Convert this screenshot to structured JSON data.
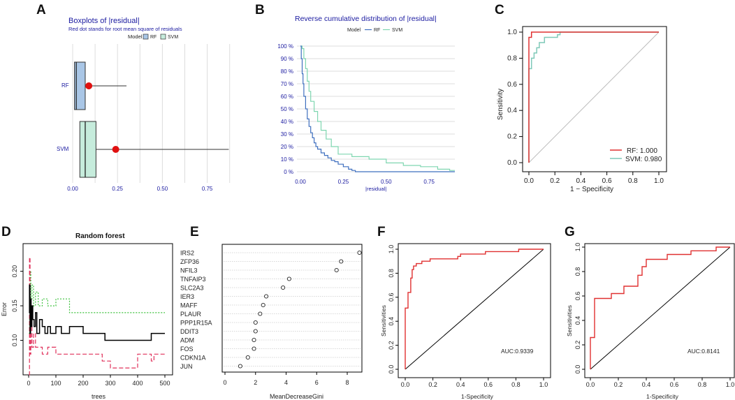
{
  "panels": {
    "A": {
      "label": "A",
      "chart_data": {
        "type": "boxplot",
        "title": "Boxplots of |residual|",
        "subtitle": "Red dot stands for root mean square of residuals",
        "legend_title": "Model",
        "legend": [
          "RF",
          "SVM"
        ],
        "xlim": [
          0,
          0.88
        ],
        "xticks": [
          "0.00",
          "0.25",
          "0.50",
          "0.75"
        ],
        "series": [
          {
            "name": "RF",
            "min": 0.0,
            "q1": 0.01,
            "median": 0.02,
            "q3": 0.07,
            "max": 0.3,
            "rmse": 0.09,
            "color": "#a9c6e6"
          },
          {
            "name": "SVM",
            "min": 0.03,
            "q1": 0.04,
            "median": 0.07,
            "q3": 0.13,
            "max": 0.87,
            "rmse": 0.24,
            "color": "#c6ecdc"
          }
        ]
      }
    },
    "B": {
      "label": "B",
      "chart_data": {
        "type": "line",
        "title": "Reverse cumulative distribution of |residual|",
        "legend_title": "Model",
        "xlabel": "|residual|",
        "xticks": [
          "0.00",
          "0.25",
          "0.50",
          "0.75"
        ],
        "yticks": [
          "0 %",
          "10 %",
          "20 %",
          "30 %",
          "40 %",
          "50 %",
          "60 %",
          "70 %",
          "80 %",
          "90 %",
          "100 %"
        ],
        "xlim": [
          0,
          0.9
        ],
        "ylim": [
          0,
          100
        ],
        "series": [
          {
            "name": "RF",
            "color": "#3f6fbf",
            "x": [
              0.0,
              0.005,
              0.01,
              0.015,
              0.02,
              0.03,
              0.04,
              0.05,
              0.06,
              0.07,
              0.08,
              0.09,
              0.1,
              0.12,
              0.14,
              0.16,
              0.18,
              0.2,
              0.22,
              0.25,
              0.28,
              0.3,
              0.32,
              0.9
            ],
            "y": [
              100,
              90,
              78,
              70,
              60,
              50,
              42,
              36,
              31,
              27,
              23,
              20,
              18,
              15,
              13,
              11,
              9,
              8,
              6,
              4,
              2,
              1,
              0,
              0
            ]
          },
          {
            "name": "SVM",
            "color": "#7fd6b0",
            "x": [
              0.0,
              0.01,
              0.02,
              0.03,
              0.04,
              0.05,
              0.06,
              0.08,
              0.1,
              0.12,
              0.15,
              0.18,
              0.22,
              0.3,
              0.4,
              0.5,
              0.6,
              0.7,
              0.8,
              0.87,
              0.9
            ],
            "y": [
              100,
              98,
              90,
              82,
              72,
              64,
              56,
              48,
              40,
              33,
              26,
              20,
              14,
              12,
              10,
              7,
              5,
              4,
              2,
              1,
              1
            ]
          }
        ]
      }
    },
    "C": {
      "label": "C",
      "chart_data": {
        "type": "line",
        "xlabel": "1 − Specificity",
        "ylabel": "Sensitivity",
        "xticks": [
          "0.0",
          "0.2",
          "0.4",
          "0.6",
          "0.8",
          "1.0"
        ],
        "yticks": [
          "0.0",
          "0.2",
          "0.4",
          "0.6",
          "0.8",
          "1.0"
        ],
        "xlim": [
          0,
          1
        ],
        "ylim": [
          0,
          1
        ],
        "series": [
          {
            "name": "RF",
            "legend": "RF: 1.000",
            "color": "#e03030",
            "x": [
              0,
              0,
              0.02,
              0.02,
              0.24,
              0.24,
              1
            ],
            "y": [
              0,
              0.96,
              0.96,
              1.0,
              1.0,
              1.0,
              1.0
            ]
          },
          {
            "name": "SVM",
            "legend": "SVM: 0.980",
            "color": "#7fc9b8",
            "x": [
              0,
              0,
              0.02,
              0.02,
              0.04,
              0.04,
              0.06,
              0.06,
              0.08,
              0.08,
              0.12,
              0.12,
              0.22,
              0.22,
              0.24,
              0.24,
              1
            ],
            "y": [
              0,
              0.72,
              0.72,
              0.8,
              0.8,
              0.84,
              0.84,
              0.88,
              0.88,
              0.92,
              0.92,
              0.96,
              0.96,
              0.98,
              0.98,
              1.0,
              1.0
            ]
          },
          {
            "name": "Reference",
            "color": "#bbbbbb",
            "x": [
              0,
              1
            ],
            "y": [
              0,
              1
            ]
          }
        ]
      }
    },
    "D": {
      "label": "D",
      "chart_data": {
        "type": "line",
        "title": "Random forest",
        "xlabel": "trees",
        "ylabel": "Error",
        "xticks": [
          "0",
          "100",
          "200",
          "300",
          "400",
          "500"
        ],
        "yticks": [
          "0.10",
          "0.15",
          "0.20"
        ],
        "xlim": [
          0,
          500
        ],
        "ylim": [
          0.05,
          0.24
        ],
        "series": [
          {
            "name": "OOB",
            "color": "#000000",
            "x": [
              1,
              3,
              5,
              7,
              9,
              12,
              15,
              20,
              25,
              30,
              40,
              50,
              60,
              70,
              80,
              100,
              120,
              150,
              200,
              250,
              280,
              300,
              350,
              400,
              450,
              460,
              500
            ],
            "y": [
              0.14,
              0.18,
              0.11,
              0.16,
              0.12,
              0.15,
              0.13,
              0.12,
              0.14,
              0.11,
              0.13,
              0.12,
              0.11,
              0.12,
              0.11,
              0.12,
              0.11,
              0.12,
              0.11,
              0.11,
              0.1,
              0.1,
              0.1,
              0.1,
              0.11,
              0.11,
              0.11
            ]
          },
          {
            "name": "Class 1",
            "color": "#e0305a",
            "x": [
              1,
              3,
              5,
              8,
              12,
              18,
              25,
              35,
              50,
              70,
              100,
              150,
              200,
              250,
              270,
              300,
              350,
              400,
              450,
              460,
              500
            ],
            "y": [
              0.05,
              0.22,
              0.08,
              0.12,
              0.09,
              0.11,
              0.09,
              0.09,
              0.08,
              0.09,
              0.08,
              0.08,
              0.08,
              0.08,
              0.07,
              0.06,
              0.06,
              0.08,
              0.07,
              0.08,
              0.08
            ]
          },
          {
            "name": "Class 2",
            "color": "#3cc13c",
            "x": [
              1,
              3,
              5,
              8,
              12,
              18,
              25,
              35,
              50,
              70,
              100,
              150,
              200,
              250,
              300,
              350,
              400,
              450,
              500
            ],
            "y": [
              0.11,
              0.13,
              0.2,
              0.16,
              0.18,
              0.15,
              0.17,
              0.15,
              0.16,
              0.15,
              0.16,
              0.14,
              0.14,
              0.14,
              0.14,
              0.14,
              0.14,
              0.14,
              0.14
            ]
          }
        ]
      }
    },
    "E": {
      "label": "E",
      "chart_data": {
        "type": "scatter",
        "xlabel": "MeanDecreaseGini",
        "xticks": [
          "0",
          "2",
          "4",
          "6",
          "8"
        ],
        "xlim": [
          -0.3,
          9.2
        ],
        "categories": [
          "IRS2",
          "ZFP36",
          "NFIL3",
          "TNFAIP3",
          "SLC2A3",
          "IER3",
          "MAFF",
          "PLAUR",
          "PPP1R15A",
          "DDIT3",
          "ADM",
          "FOS",
          "CDKN1A",
          "JUN"
        ],
        "values": [
          8.8,
          7.6,
          7.3,
          4.2,
          3.8,
          2.7,
          2.5,
          2.3,
          2.0,
          2.0,
          1.9,
          1.9,
          1.5,
          1.0
        ]
      }
    },
    "F": {
      "label": "F",
      "chart_data": {
        "type": "line",
        "xlabel": "1-Specificity",
        "ylabel": "Sensitivities",
        "annotation": "AUC:0.9339",
        "xticks": [
          "0.0",
          "0.2",
          "0.4",
          "0.6",
          "0.8",
          "1.0"
        ],
        "yticks": [
          "0.0",
          "0.2",
          "0.4",
          "0.6",
          "0.8",
          "1.0"
        ],
        "xlim": [
          0,
          1
        ],
        "ylim": [
          0,
          1
        ],
        "series": [
          {
            "name": "ROC",
            "color": "#e03030",
            "x": [
              0,
              0,
              0.02,
              0.02,
              0.04,
              0.04,
              0.05,
              0.05,
              0.06,
              0.06,
              0.08,
              0.08,
              0.12,
              0.12,
              0.18,
              0.18,
              0.38,
              0.38,
              0.4,
              0.4,
              0.58,
              0.58,
              0.82,
              0.82,
              1.0
            ],
            "y": [
              0,
              0.51,
              0.51,
              0.64,
              0.64,
              0.76,
              0.76,
              0.83,
              0.83,
              0.86,
              0.86,
              0.88,
              0.88,
              0.9,
              0.9,
              0.92,
              0.92,
              0.94,
              0.94,
              0.96,
              0.96,
              0.98,
              0.98,
              1.0,
              1.0
            ]
          },
          {
            "name": "Reference",
            "color": "#000000",
            "x": [
              0,
              1
            ],
            "y": [
              0,
              1
            ]
          }
        ]
      }
    },
    "G": {
      "label": "G",
      "chart_data": {
        "type": "line",
        "xlabel": "1-Specificity",
        "ylabel": "Sensitivities",
        "annotation": "AUC:0.8141",
        "xticks": [
          "0.0",
          "0.2",
          "0.4",
          "0.6",
          "0.8",
          "1.0"
        ],
        "yticks": [
          "0.0",
          "0.2",
          "0.4",
          "0.6",
          "0.8",
          "1.0"
        ],
        "xlim": [
          0,
          1
        ],
        "ylim": [
          0,
          1
        ],
        "series": [
          {
            "name": "ROC",
            "color": "#e03030",
            "x": [
              0,
              0,
              0.03,
              0.03,
              0.06,
              0.06,
              0.15,
              0.15,
              0.19,
              0.19,
              0.24,
              0.24,
              0.29,
              0.29,
              0.34,
              0.34,
              0.37,
              0.37,
              0.4,
              0.4,
              0.55,
              0.55,
              0.72,
              0.72,
              0.9,
              0.9,
              1.0
            ],
            "y": [
              0,
              0.26,
              0.26,
              0.58,
              0.58,
              0.58,
              0.58,
              0.62,
              0.62,
              0.62,
              0.62,
              0.68,
              0.68,
              0.68,
              0.68,
              0.77,
              0.77,
              0.84,
              0.84,
              0.9,
              0.9,
              0.94,
              0.94,
              0.97,
              0.97,
              1.0,
              1.0
            ]
          },
          {
            "name": "Reference",
            "color": "#000000",
            "x": [
              0,
              1
            ],
            "y": [
              0,
              1
            ]
          }
        ]
      }
    }
  }
}
